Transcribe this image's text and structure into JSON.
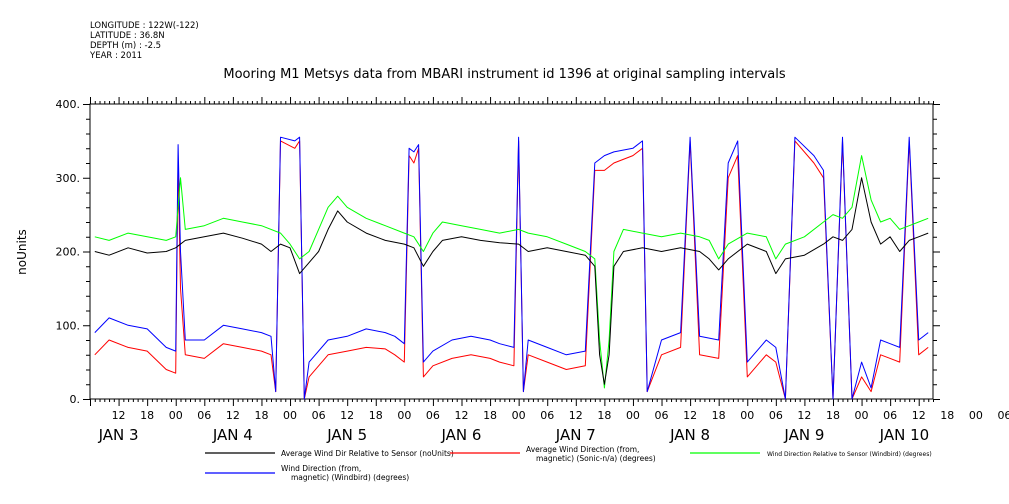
{
  "header": {
    "meta_lines": [
      "LONGITUDE : 122W(-122)",
      "LATITUDE : 36.8N",
      "DEPTH (m) : -2.5",
      "YEAR : 2011"
    ],
    "title": "Mooring M1 Metsys data from MBARI instrument id 1396 at original sampling intervals"
  },
  "chart_data": {
    "type": "line",
    "title": "Mooring M1 Metsys data from MBARI instrument id 1396 at original sampling intervals",
    "ylabel": "noUnits",
    "xlabel": "",
    "ylim": [
      0,
      400
    ],
    "yticks": [
      "0.",
      "100.",
      "200.",
      "300.",
      "400."
    ],
    "xlim_hours_from_jan3_00": [
      6,
      183
    ],
    "hour_tick_labels": [
      "12",
      "18",
      "00",
      "06",
      "12",
      "18",
      "00",
      "06",
      "12",
      "18",
      "00",
      "06",
      "12",
      "18",
      "00",
      "06",
      "12",
      "18",
      "00",
      "06",
      "12",
      "18",
      "00",
      "06",
      "12",
      "18",
      "00",
      "06",
      "12",
      "18",
      "00",
      "06"
    ],
    "day_labels": [
      "JAN  3",
      "JAN  4",
      "JAN  5",
      "JAN  6",
      "JAN  7",
      "JAN  8",
      "JAN  9",
      "JAN 10"
    ],
    "grid": false,
    "legend_position": "bottom",
    "colors": {
      "black": "#000000",
      "red": "#ff0000",
      "green": "#00ff00",
      "blue": "#0000ff"
    },
    "series": [
      {
        "name": "Average Wind Dir Relative to Sensor (noUnits)",
        "color": "#000000",
        "points": [
          [
            7,
            200
          ],
          [
            10,
            195
          ],
          [
            14,
            205
          ],
          [
            18,
            198
          ],
          [
            22,
            200
          ],
          [
            24,
            205
          ],
          [
            26,
            215
          ],
          [
            30,
            220
          ],
          [
            34,
            225
          ],
          [
            38,
            218
          ],
          [
            42,
            210
          ],
          [
            44,
            200
          ],
          [
            46,
            210
          ],
          [
            48,
            205
          ],
          [
            50,
            170
          ],
          [
            52,
            185
          ],
          [
            54,
            200
          ],
          [
            56,
            230
          ],
          [
            58,
            255
          ],
          [
            60,
            240
          ],
          [
            64,
            225
          ],
          [
            68,
            215
          ],
          [
            72,
            210
          ],
          [
            74,
            205
          ],
          [
            76,
            180
          ],
          [
            78,
            200
          ],
          [
            80,
            215
          ],
          [
            84,
            220
          ],
          [
            88,
            215
          ],
          [
            92,
            212
          ],
          [
            96,
            210
          ],
          [
            98,
            200
          ],
          [
            102,
            205
          ],
          [
            106,
            200
          ],
          [
            110,
            195
          ],
          [
            112,
            180
          ],
          [
            113,
            60
          ],
          [
            114,
            20
          ],
          [
            115,
            60
          ],
          [
            116,
            180
          ],
          [
            118,
            200
          ],
          [
            122,
            205
          ],
          [
            126,
            200
          ],
          [
            130,
            205
          ],
          [
            134,
            200
          ],
          [
            136,
            190
          ],
          [
            138,
            175
          ],
          [
            140,
            190
          ],
          [
            144,
            210
          ],
          [
            148,
            200
          ],
          [
            150,
            170
          ],
          [
            152,
            190
          ],
          [
            156,
            195
          ],
          [
            160,
            210
          ],
          [
            162,
            220
          ],
          [
            164,
            215
          ],
          [
            166,
            230
          ],
          [
            168,
            300
          ],
          [
            170,
            240
          ],
          [
            172,
            210
          ],
          [
            174,
            220
          ],
          [
            176,
            200
          ],
          [
            178,
            215
          ],
          [
            180,
            220
          ],
          [
            182,
            225
          ]
        ]
      },
      {
        "name": "Average Wind Direction (from, magnetic) (Sonic-n/a) (degrees)",
        "color": "#ff0000",
        "points": [
          [
            7,
            60
          ],
          [
            10,
            80
          ],
          [
            14,
            70
          ],
          [
            18,
            65
          ],
          [
            22,
            40
          ],
          [
            24,
            35
          ],
          [
            24.5,
            320
          ],
          [
            25,
            150
          ],
          [
            26,
            60
          ],
          [
            30,
            55
          ],
          [
            34,
            75
          ],
          [
            38,
            70
          ],
          [
            42,
            65
          ],
          [
            44,
            60
          ],
          [
            45,
            10
          ],
          [
            46,
            350
          ],
          [
            49,
            340
          ],
          [
            50,
            350
          ],
          [
            51,
            0
          ],
          [
            52,
            30
          ],
          [
            56,
            60
          ],
          [
            60,
            65
          ],
          [
            64,
            70
          ],
          [
            68,
            68
          ],
          [
            70,
            60
          ],
          [
            72,
            50
          ],
          [
            73,
            330
          ],
          [
            74,
            320
          ],
          [
            75,
            340
          ],
          [
            76,
            30
          ],
          [
            78,
            45
          ],
          [
            82,
            55
          ],
          [
            86,
            60
          ],
          [
            90,
            55
          ],
          [
            92,
            50
          ],
          [
            95,
            45
          ],
          [
            96,
            350
          ],
          [
            97,
            10
          ],
          [
            98,
            60
          ],
          [
            102,
            50
          ],
          [
            106,
            40
          ],
          [
            110,
            45
          ],
          [
            112,
            310
          ],
          [
            114,
            310
          ],
          [
            116,
            320
          ],
          [
            120,
            330
          ],
          [
            122,
            340
          ],
          [
            123,
            10
          ],
          [
            126,
            60
          ],
          [
            130,
            70
          ],
          [
            132,
            350
          ],
          [
            134,
            60
          ],
          [
            138,
            55
          ],
          [
            140,
            300
          ],
          [
            142,
            330
          ],
          [
            144,
            30
          ],
          [
            148,
            60
          ],
          [
            150,
            50
          ],
          [
            152,
            0
          ],
          [
            154,
            350
          ],
          [
            158,
            320
          ],
          [
            160,
            300
          ],
          [
            162,
            0
          ],
          [
            164,
            350
          ],
          [
            166,
            0
          ],
          [
            168,
            30
          ],
          [
            170,
            10
          ],
          [
            172,
            60
          ],
          [
            176,
            50
          ],
          [
            178,
            350
          ],
          [
            180,
            60
          ],
          [
            182,
            70
          ]
        ]
      },
      {
        "name": "Wind Direction Relative to Sensor (Windbird) (degrees)",
        "color": "#00ff00",
        "points": [
          [
            7,
            220
          ],
          [
            10,
            215
          ],
          [
            14,
            225
          ],
          [
            18,
            220
          ],
          [
            22,
            215
          ],
          [
            24,
            220
          ],
          [
            25,
            300
          ],
          [
            26,
            230
          ],
          [
            30,
            235
          ],
          [
            34,
            245
          ],
          [
            38,
            240
          ],
          [
            42,
            235
          ],
          [
            46,
            225
          ],
          [
            48,
            210
          ],
          [
            50,
            190
          ],
          [
            52,
            200
          ],
          [
            54,
            230
          ],
          [
            56,
            260
          ],
          [
            58,
            275
          ],
          [
            60,
            260
          ],
          [
            64,
            245
          ],
          [
            68,
            235
          ],
          [
            72,
            225
          ],
          [
            74,
            220
          ],
          [
            76,
            200
          ],
          [
            78,
            225
          ],
          [
            80,
            240
          ],
          [
            84,
            235
          ],
          [
            88,
            230
          ],
          [
            92,
            225
          ],
          [
            96,
            230
          ],
          [
            98,
            225
          ],
          [
            102,
            220
          ],
          [
            106,
            210
          ],
          [
            110,
            200
          ],
          [
            112,
            190
          ],
          [
            113,
            80
          ],
          [
            114,
            15
          ],
          [
            115,
            80
          ],
          [
            116,
            200
          ],
          [
            118,
            230
          ],
          [
            122,
            225
          ],
          [
            126,
            220
          ],
          [
            130,
            225
          ],
          [
            134,
            220
          ],
          [
            136,
            215
          ],
          [
            138,
            190
          ],
          [
            140,
            210
          ],
          [
            144,
            225
          ],
          [
            148,
            220
          ],
          [
            150,
            190
          ],
          [
            152,
            210
          ],
          [
            156,
            220
          ],
          [
            160,
            240
          ],
          [
            162,
            250
          ],
          [
            164,
            245
          ],
          [
            166,
            260
          ],
          [
            168,
            330
          ],
          [
            170,
            270
          ],
          [
            172,
            240
          ],
          [
            174,
            245
          ],
          [
            176,
            230
          ],
          [
            178,
            235
          ],
          [
            180,
            240
          ],
          [
            182,
            245
          ]
        ]
      },
      {
        "name": "Wind Direction (from, magnetic) (Windbird) (degrees)",
        "color": "#0000ff",
        "points": [
          [
            7,
            90
          ],
          [
            10,
            110
          ],
          [
            14,
            100
          ],
          [
            18,
            95
          ],
          [
            22,
            70
          ],
          [
            24,
            65
          ],
          [
            24.5,
            345
          ],
          [
            25,
            200
          ],
          [
            26,
            80
          ],
          [
            30,
            80
          ],
          [
            34,
            100
          ],
          [
            38,
            95
          ],
          [
            42,
            90
          ],
          [
            44,
            85
          ],
          [
            45,
            10
          ],
          [
            46,
            355
          ],
          [
            49,
            350
          ],
          [
            50,
            355
          ],
          [
            51,
            0
          ],
          [
            52,
            50
          ],
          [
            56,
            80
          ],
          [
            60,
            85
          ],
          [
            64,
            95
          ],
          [
            68,
            90
          ],
          [
            70,
            85
          ],
          [
            72,
            75
          ],
          [
            73,
            340
          ],
          [
            74,
            335
          ],
          [
            75,
            345
          ],
          [
            76,
            50
          ],
          [
            78,
            65
          ],
          [
            82,
            80
          ],
          [
            86,
            85
          ],
          [
            90,
            80
          ],
          [
            92,
            75
          ],
          [
            95,
            70
          ],
          [
            96,
            355
          ],
          [
            97,
            10
          ],
          [
            98,
            80
          ],
          [
            102,
            70
          ],
          [
            106,
            60
          ],
          [
            110,
            65
          ],
          [
            112,
            320
          ],
          [
            114,
            330
          ],
          [
            116,
            335
          ],
          [
            120,
            340
          ],
          [
            122,
            350
          ],
          [
            123,
            10
          ],
          [
            126,
            80
          ],
          [
            130,
            90
          ],
          [
            132,
            355
          ],
          [
            134,
            85
          ],
          [
            138,
            80
          ],
          [
            140,
            320
          ],
          [
            142,
            350
          ],
          [
            144,
            50
          ],
          [
            148,
            80
          ],
          [
            150,
            70
          ],
          [
            152,
            0
          ],
          [
            154,
            355
          ],
          [
            158,
            330
          ],
          [
            160,
            310
          ],
          [
            162,
            0
          ],
          [
            164,
            355
          ],
          [
            166,
            0
          ],
          [
            168,
            50
          ],
          [
            170,
            15
          ],
          [
            172,
            80
          ],
          [
            176,
            70
          ],
          [
            178,
            355
          ],
          [
            180,
            80
          ],
          [
            182,
            90
          ]
        ]
      }
    ]
  },
  "legend": [
    {
      "color": "#000000",
      "lines": [
        "Average Wind Dir Relative to Sensor (noUnits)"
      ]
    },
    {
      "color": "#ff0000",
      "lines": [
        "Average Wind Direction (from,",
        "magnetic) (Sonic-n/a) (degrees)"
      ]
    },
    {
      "color": "#00ff00",
      "lines": [
        "Wind Direction Relative to Sensor (Windbird) (degrees)"
      ]
    },
    {
      "color": "#0000ff",
      "lines": [
        "Wind Direction (from,",
        "magnetic) (Windbird) (degrees)"
      ]
    }
  ]
}
